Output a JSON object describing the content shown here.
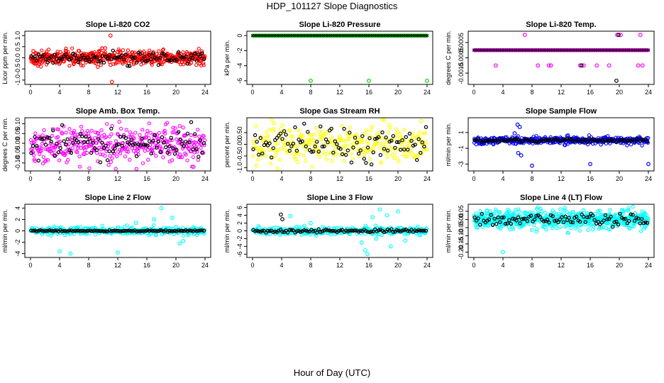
{
  "figure": {
    "title": "HDP_101127  Slope Diagnostics",
    "x_caption": "Hour of Day (UTC)"
  },
  "chart_data": [
    {
      "type": "scatter",
      "title": "Slope Li-820 CO2",
      "ylabel": "Licor ppm per min.",
      "color": "#ff0000",
      "xlim": [
        0,
        24
      ],
      "ylim": [
        -1.1,
        1.1
      ],
      "xticks": [
        0,
        4,
        8,
        12,
        16,
        20,
        24
      ],
      "yticks": [
        -1.0,
        -0.5,
        0.0,
        0.5,
        1.0
      ],
      "ytick_labels": [
        "-1.0",
        "-0.5",
        "0.0",
        "0.5",
        "1.0"
      ],
      "noise": {
        "count": 520,
        "center": 0,
        "spread": 0.16
      },
      "outliers": [
        {
          "x": 11.0,
          "y": 1.0
        },
        {
          "x": 11.2,
          "y": -1.08
        },
        {
          "x": 0.4,
          "y": 0.3
        }
      ],
      "mean_series": {
        "spread": 0.14
      }
    },
    {
      "type": "scatter",
      "title": "Slope Li-820 Pressure",
      "ylabel": "kPa per min.",
      "color": "#00cc00",
      "xlim": [
        0,
        24
      ],
      "ylim": [
        -6.2,
        0.3
      ],
      "xticks": [
        0,
        4,
        8,
        12,
        16,
        20,
        24
      ],
      "yticks": [
        -6,
        -4,
        -2,
        0
      ],
      "ytick_labels": [
        "-6",
        "-4",
        "-2",
        "0"
      ],
      "noise": {
        "count": 260,
        "center": 0,
        "spread": 0.0
      },
      "outliers": [
        {
          "x": 8.0,
          "y": -6.0
        },
        {
          "x": 16.0,
          "y": -6.0
        },
        {
          "x": 24.0,
          "y": -6.0
        }
      ],
      "mean_series": {
        "spread": 0.0
      }
    },
    {
      "type": "scatter",
      "title": "Slope Li-820 Temp.",
      "ylabel": "degrees C per min.",
      "color": "#ff00ff",
      "xlim": [
        0,
        24
      ],
      "ylim": [
        -0.0021,
        0.0011
      ],
      "xticks": [
        0,
        4,
        8,
        12,
        16,
        20,
        24
      ],
      "yticks": [
        -0.0015,
        -0.0005,
        0.0005
      ],
      "ytick_labels": [
        "-0.0015",
        "-0.0005",
        "0.0005"
      ],
      "noise": {
        "count": 240,
        "center": 0,
        "spread": 0.0
      },
      "outliers": [
        {
          "x": 3.0,
          "y": -0.001
        },
        {
          "x": 7.0,
          "y": 0.001
        },
        {
          "x": 8.8,
          "y": -0.001
        },
        {
          "x": 10.3,
          "y": -0.001
        },
        {
          "x": 10.6,
          "y": -0.001
        },
        {
          "x": 14.6,
          "y": -0.001
        },
        {
          "x": 15.1,
          "y": -0.001
        },
        {
          "x": 16.9,
          "y": -0.001
        },
        {
          "x": 18.6,
          "y": -0.001
        },
        {
          "x": 19.7,
          "y": 0.001
        },
        {
          "x": 20.2,
          "y": 0.001
        },
        {
          "x": 22.6,
          "y": -0.001
        },
        {
          "x": 22.9,
          "y": 0.001
        },
        {
          "x": 23.2,
          "y": -0.001
        }
      ],
      "black_outliers": [
        {
          "x": 14.8,
          "y": -0.001
        },
        {
          "x": 19.6,
          "y": -0.002
        },
        {
          "x": 19.9,
          "y": 0.001
        }
      ],
      "mean_series": {
        "spread": 0.0
      }
    },
    {
      "type": "scatter",
      "title": "Slope Amb. Box Temp.",
      "ylabel": "degrees C per min.",
      "color": "#ff00ff",
      "xlim": [
        0,
        24
      ],
      "ylim": [
        -0.13,
        0.12
      ],
      "xticks": [
        0,
        4,
        8,
        12,
        16,
        20,
        24
      ],
      "yticks": [
        -0.1,
        -0.05,
        0.0,
        0.05,
        0.1
      ],
      "ytick_labels": [
        "-0.10",
        "-0.05",
        "0.00",
        "0.05",
        "0.10"
      ],
      "noise": {
        "count": 380,
        "center": 0,
        "spread": 0.045
      },
      "outliers": [
        {
          "x": 22.4,
          "y": -0.12
        },
        {
          "x": 0.6,
          "y": -0.09
        }
      ],
      "mean_series": {
        "spread": 0.035
      }
    },
    {
      "type": "scatter",
      "title": "Slope Gas Stream RH",
      "ylabel": "percent per min.",
      "color": "#ffff00",
      "xlim": [
        0,
        24
      ],
      "ylim": [
        -1.05,
        1.05
      ],
      "xticks": [
        0,
        4,
        8,
        12,
        16,
        20,
        24
      ],
      "yticks": [
        -1.0,
        -0.5,
        0.0,
        0.5
      ],
      "ytick_labels": [
        "-1.0",
        "-0.5",
        "0.00",
        "0.50"
      ],
      "noise": {
        "count": 300,
        "center": 0,
        "spread": 0.42
      },
      "outliers": [
        {
          "x": 23.2,
          "y": 1.0
        }
      ],
      "mean_series": {
        "spread": 0.33
      }
    },
    {
      "type": "scatter",
      "title": "Slope Sample Flow",
      "ylabel": "ml/min per min.",
      "color": "#0000ff",
      "xlim": [
        0,
        24
      ],
      "ylim": [
        -3.6,
        2.6
      ],
      "xticks": [
        0,
        4,
        8,
        12,
        16,
        20,
        24
      ],
      "yticks": [
        -3,
        -1,
        1
      ],
      "ytick_labels": [
        "-3",
        "-1",
        "1"
      ],
      "noise": {
        "count": 420,
        "center": 0,
        "spread": 0.22
      },
      "outliers": [
        {
          "x": 6.0,
          "y": 2.0
        },
        {
          "x": 6.3,
          "y": 1.7
        },
        {
          "x": 6.1,
          "y": -1.6
        },
        {
          "x": 6.5,
          "y": -1.9
        },
        {
          "x": 8.0,
          "y": -3.2
        },
        {
          "x": 16.0,
          "y": -3.0
        },
        {
          "x": 24.0,
          "y": -3.0
        },
        {
          "x": 5.6,
          "y": 0.9
        }
      ],
      "mean_series": {
        "spread": 0.12
      }
    },
    {
      "type": "scatter",
      "title": "Slope Line 2 Flow",
      "ylabel": "ml/min per min.",
      "color": "#00ffff",
      "xlim": [
        0,
        24
      ],
      "ylim": [
        -4.3,
        4.3
      ],
      "xticks": [
        0,
        4,
        8,
        12,
        16,
        20,
        24
      ],
      "yticks": [
        -4,
        -2,
        0,
        2,
        4
      ],
      "ytick_labels": [
        "-4",
        "-2",
        "0",
        "2",
        "4"
      ],
      "noise": {
        "count": 320,
        "center": 0,
        "spread": 0.35
      },
      "outliers": [
        {
          "x": 4.0,
          "y": -3.6
        },
        {
          "x": 5.5,
          "y": -4.0
        },
        {
          "x": 12.0,
          "y": -3.8
        },
        {
          "x": 18.0,
          "y": 4.0
        },
        {
          "x": 20.5,
          "y": -2.2
        },
        {
          "x": 21.0,
          "y": -1.8
        },
        {
          "x": 17.0,
          "y": 2.0
        },
        {
          "x": 19.5,
          "y": 2.3
        },
        {
          "x": 14.5,
          "y": 1.4
        }
      ],
      "mean_series": {
        "spread": 0.06
      }
    },
    {
      "type": "scatter",
      "title": "Slope Line 3 Flow",
      "ylabel": "ml/min per min.",
      "color": "#00ffff",
      "xlim": [
        0,
        24
      ],
      "ylim": [
        -6.3,
        6.3
      ],
      "xticks": [
        0,
        4,
        8,
        12,
        16,
        20,
        24
      ],
      "yticks": [
        -6,
        -4,
        -2,
        0,
        2,
        4,
        6
      ],
      "ytick_labels": [
        "-6",
        "-4",
        "-2",
        "0",
        "2",
        "4",
        "6"
      ],
      "noise": {
        "count": 320,
        "center": 0,
        "spread": 0.5
      },
      "outliers": [
        {
          "x": 15.0,
          "y": -3.0
        },
        {
          "x": 15.5,
          "y": -5.0
        },
        {
          "x": 15.8,
          "y": -6.0
        },
        {
          "x": 17.5,
          "y": 5.5
        },
        {
          "x": 18.5,
          "y": 4.0
        },
        {
          "x": 19.0,
          "y": -4.0
        },
        {
          "x": 16.5,
          "y": 3.5
        },
        {
          "x": 8.0,
          "y": 2.0
        },
        {
          "x": 5.2,
          "y": 3.8
        },
        {
          "x": 21.0,
          "y": -2.5
        },
        {
          "x": 20.0,
          "y": 5.0
        },
        {
          "x": 17.0,
          "y": -2.0
        }
      ],
      "black_outliers": [
        {
          "x": 3.9,
          "y": 4.2
        },
        {
          "x": 4.1,
          "y": 3.0
        }
      ],
      "mean_series": {
        "spread": 0.2
      }
    },
    {
      "type": "scatter",
      "title": "Slope Line 4 (LT) Flow",
      "ylabel": "ml/min per min.",
      "color": "#00ffff",
      "xlim": [
        0,
        24
      ],
      "ylim": [
        -0.22,
        0.08
      ],
      "xticks": [
        0,
        4,
        8,
        12,
        16,
        20,
        24
      ],
      "yticks": [
        -0.2,
        -0.15,
        -0.1,
        -0.05,
        0.0,
        0.05
      ],
      "ytick_labels": [
        "-0.20",
        "-0.15",
        "-0.10",
        "-0.05",
        "0.00",
        "0.05"
      ],
      "noise": {
        "count": 620,
        "center": 0.0,
        "spread": 0.028
      },
      "outliers": [
        {
          "x": 4.0,
          "y": -0.2
        },
        {
          "x": 12.5,
          "y": 0.07
        }
      ],
      "mean_series": {
        "spread": 0.02
      }
    }
  ]
}
